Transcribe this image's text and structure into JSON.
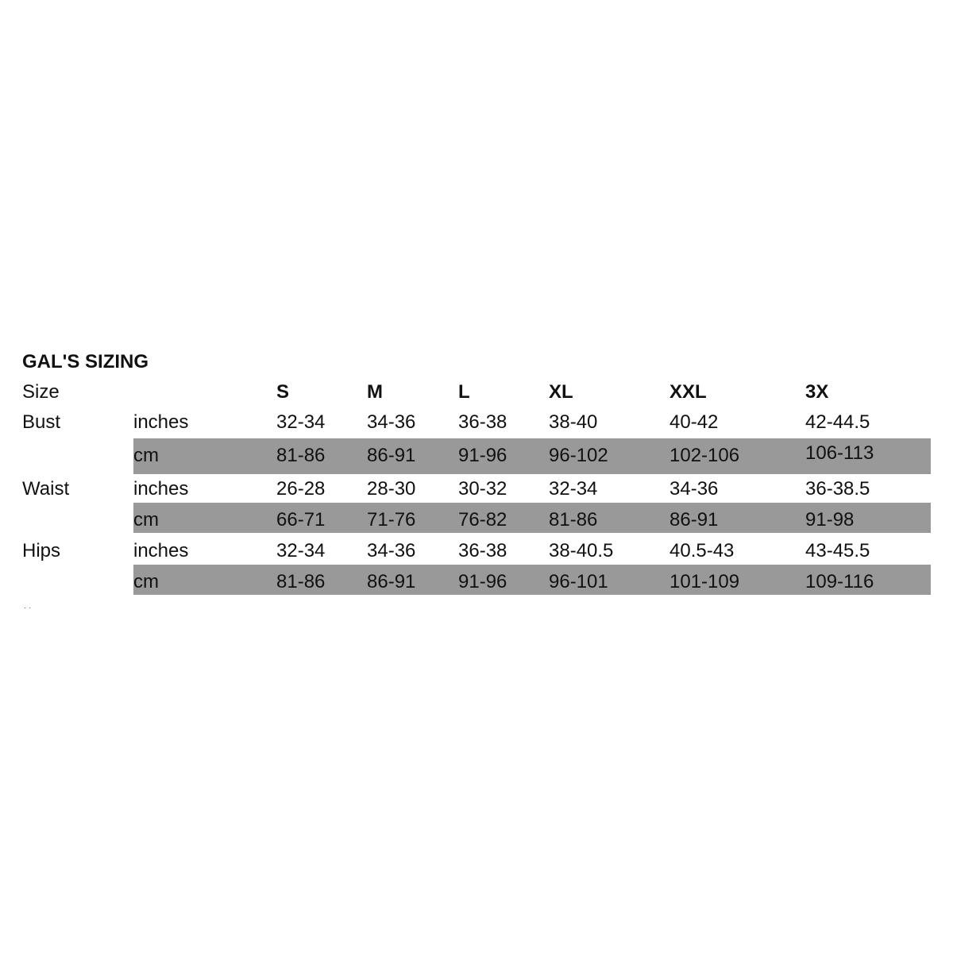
{
  "title": "GAL'S SIZING",
  "header": {
    "label": "Size",
    "sizes": [
      "S",
      "M",
      "L",
      "XL",
      "XXL",
      "3X"
    ]
  },
  "rows": [
    {
      "measure": "Bust",
      "unit": "inches",
      "values": [
        "32-34",
        "34-36",
        "36-38",
        "38-40",
        "40-42",
        "42-44.5"
      ],
      "shaded": false
    },
    {
      "measure": "",
      "unit": "cm",
      "values": [
        "81-86",
        "86-91",
        "91-96",
        "96-102",
        "102-106",
        "106-113"
      ],
      "shaded": true
    },
    {
      "measure": "Waist",
      "unit": "inches",
      "values": [
        "26-28",
        "28-30",
        "30-32",
        "32-34",
        "34-36",
        "36-38.5"
      ],
      "shaded": false
    },
    {
      "measure": "",
      "unit": "cm",
      "values": [
        "66-71",
        "71-76",
        "76-82",
        "81-86",
        "86-91",
        "91-98"
      ],
      "shaded": true
    },
    {
      "measure": "Hips",
      "unit": "inches",
      "values": [
        "32-34",
        "34-36",
        "36-38",
        "38-40.5",
        "40.5-43",
        "43-45.5"
      ],
      "shaded": false
    },
    {
      "measure": "",
      "unit": "cm",
      "values": [
        "81-86",
        "86-91",
        "91-96",
        "96-101",
        "101-109",
        "109-116"
      ],
      "shaded": true
    }
  ],
  "colors": {
    "band": "#999999",
    "text": "#111111"
  }
}
